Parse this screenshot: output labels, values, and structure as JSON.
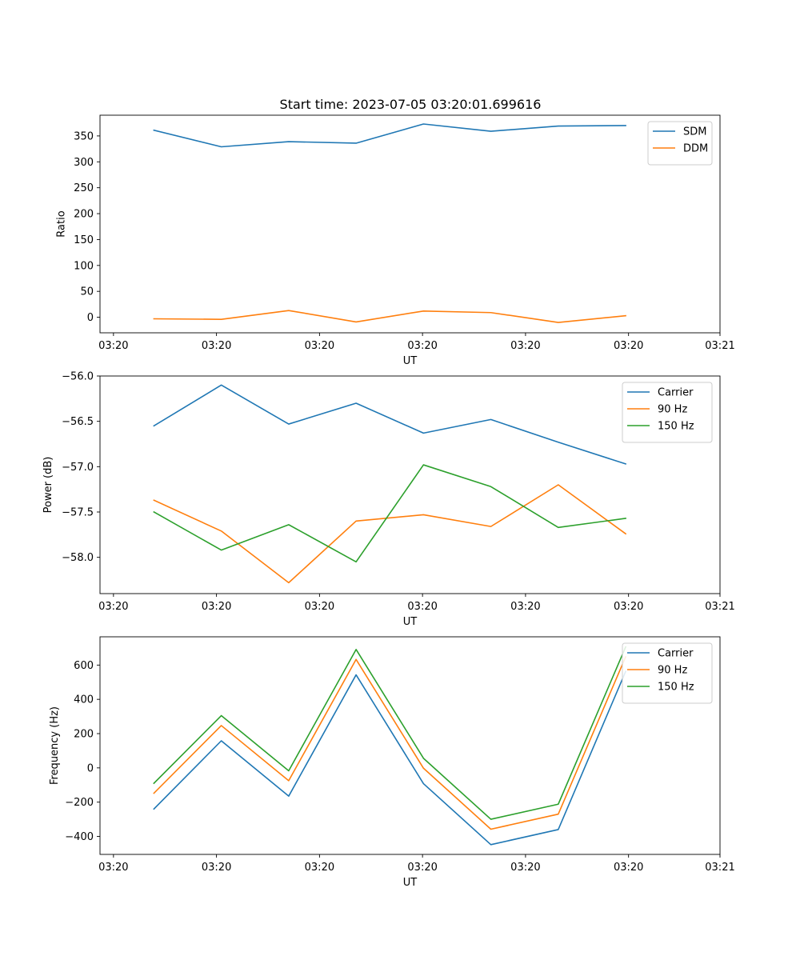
{
  "figure_title": "Start time: 2023-07-05 03:20:01.699616",
  "chart_data": [
    {
      "type": "line",
      "title": "Start time: 2023-07-05 03:20:01.699616",
      "xlabel": "UT",
      "ylabel": "Ratio",
      "x": [
        1,
        2,
        3,
        4,
        5,
        6,
        7,
        8
      ],
      "xlim": [
        0.2,
        9.4
      ],
      "xticks": [
        0.4,
        1.928571,
        3.457143,
        4.985714,
        6.514286,
        8.042857,
        9.4
      ],
      "xtick_labels": [
        "03:20",
        "03:20",
        "03:20",
        "03:20",
        "03:20",
        "03:20",
        "03:21"
      ],
      "ylim": [
        -30,
        390
      ],
      "yticks": [
        0,
        50,
        100,
        150,
        200,
        250,
        300,
        350
      ],
      "ytick_labels": [
        "0",
        "50",
        "100",
        "150",
        "200",
        "250",
        "300",
        "350"
      ],
      "legend_position": "top-right",
      "series": [
        {
          "name": "SDM",
          "color": "#1f77b4",
          "values": [
            361,
            329,
            339,
            336,
            373,
            359,
            369,
            370
          ]
        },
        {
          "name": "DDM",
          "color": "#ff7f0e",
          "values": [
            -3,
            -4,
            13,
            -9,
            12,
            9,
            -10,
            3
          ]
        }
      ]
    },
    {
      "type": "line",
      "title": "",
      "xlabel": "UT",
      "ylabel": "Power (dB)",
      "x": [
        1,
        2,
        3,
        4,
        5,
        6,
        7,
        8
      ],
      "xlim": [
        0.2,
        9.4
      ],
      "xticks": [
        0.4,
        1.928571,
        3.457143,
        4.985714,
        6.514286,
        8.042857,
        9.4
      ],
      "xtick_labels": [
        "03:20",
        "03:20",
        "03:20",
        "03:20",
        "03:20",
        "03:20",
        "03:21"
      ],
      "ylim": [
        -58.4,
        -56.0
      ],
      "yticks": [
        -58.0,
        -57.5,
        -57.0,
        -56.5,
        -56.0
      ],
      "ytick_labels": [
        "−58.0",
        "−57.5",
        "−57.0",
        "−56.5",
        "−56.0"
      ],
      "legend_position": "top-right",
      "series": [
        {
          "name": "Carrier",
          "color": "#1f77b4",
          "values": [
            -56.55,
            -56.1,
            -56.53,
            -56.3,
            -56.63,
            -56.48,
            -56.73,
            -56.97
          ]
        },
        {
          "name": "90 Hz",
          "color": "#ff7f0e",
          "values": [
            -57.37,
            -57.71,
            -58.28,
            -57.6,
            -57.53,
            -57.66,
            -57.2,
            -57.74
          ]
        },
        {
          "name": "150 Hz",
          "color": "#2ca02c",
          "values": [
            -57.5,
            -57.92,
            -57.64,
            -58.05,
            -56.98,
            -57.22,
            -57.67,
            -57.57
          ]
        }
      ]
    },
    {
      "type": "line",
      "title": "",
      "xlabel": "UT",
      "ylabel": "Frequency (Hz)",
      "x": [
        1,
        2,
        3,
        4,
        5,
        6,
        7,
        8
      ],
      "xlim": [
        0.2,
        9.4
      ],
      "xticks": [
        0.4,
        1.928571,
        3.457143,
        4.985714,
        6.514286,
        8.042857,
        9.4
      ],
      "xtick_labels": [
        "03:20",
        "03:20",
        "03:20",
        "03:20",
        "03:20",
        "03:20",
        "03:21"
      ],
      "ylim": [
        -505,
        765
      ],
      "yticks": [
        -400,
        -200,
        0,
        200,
        400,
        600
      ],
      "ytick_labels": [
        "−400",
        "−200",
        "0",
        "200",
        "400",
        "600"
      ],
      "legend_position": "top-right",
      "series": [
        {
          "name": "Carrier",
          "color": "#1f77b4",
          "values": [
            -240,
            158,
            -165,
            543,
            -92,
            -448,
            -360,
            563
          ]
        },
        {
          "name": "90 Hz",
          "color": "#ff7f0e",
          "values": [
            -148,
            247,
            -75,
            633,
            -2,
            -358,
            -270,
            648
          ]
        },
        {
          "name": "150 Hz",
          "color": "#2ca02c",
          "values": [
            -90,
            305,
            -17,
            691,
            56,
            -300,
            -212,
            706
          ]
        }
      ]
    }
  ]
}
